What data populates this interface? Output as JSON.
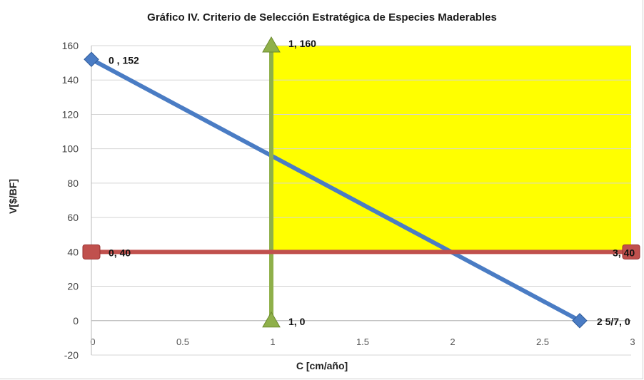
{
  "chart_data": {
    "type": "scatter",
    "title": "Gráfico IV. Criterio de Selección Estratégica de Especies Maderables",
    "xlabel": "C [cm/año]",
    "ylabel": "V[$/BF]",
    "xlim": [
      0,
      3
    ],
    "ylim": [
      -20,
      160
    ],
    "x_ticks": [
      "0",
      "0.5",
      "1",
      "1.5",
      "2",
      "2.5",
      "3"
    ],
    "y_ticks": [
      "-20",
      "0",
      "20",
      "40",
      "60",
      "80",
      "100",
      "120",
      "140",
      "160"
    ],
    "grid": true,
    "series": [
      {
        "color": "#4a7cc4",
        "marker": "diamond",
        "points": [
          {
            "x": 0,
            "y": 152,
            "label": "0   , 152"
          },
          {
            "x": 2.714,
            "y": 0,
            "label": "2 5/7, 0"
          }
        ]
      },
      {
        "color": "#8fb04a",
        "marker": "triangle",
        "points": [
          {
            "x": 1,
            "y": 160,
            "label": "1, 160"
          },
          {
            "x": 1,
            "y": 0,
            "label": "1, 0"
          }
        ]
      },
      {
        "color": "#c0504d",
        "marker": "square",
        "points": [
          {
            "x": 0,
            "y": 40,
            "label": "0, 40"
          },
          {
            "x": 3,
            "y": 40,
            "label": "3, 40"
          }
        ]
      }
    ],
    "region": {
      "x": [
        1,
        3
      ],
      "y": [
        40,
        160
      ],
      "color": "#ffff00"
    }
  }
}
